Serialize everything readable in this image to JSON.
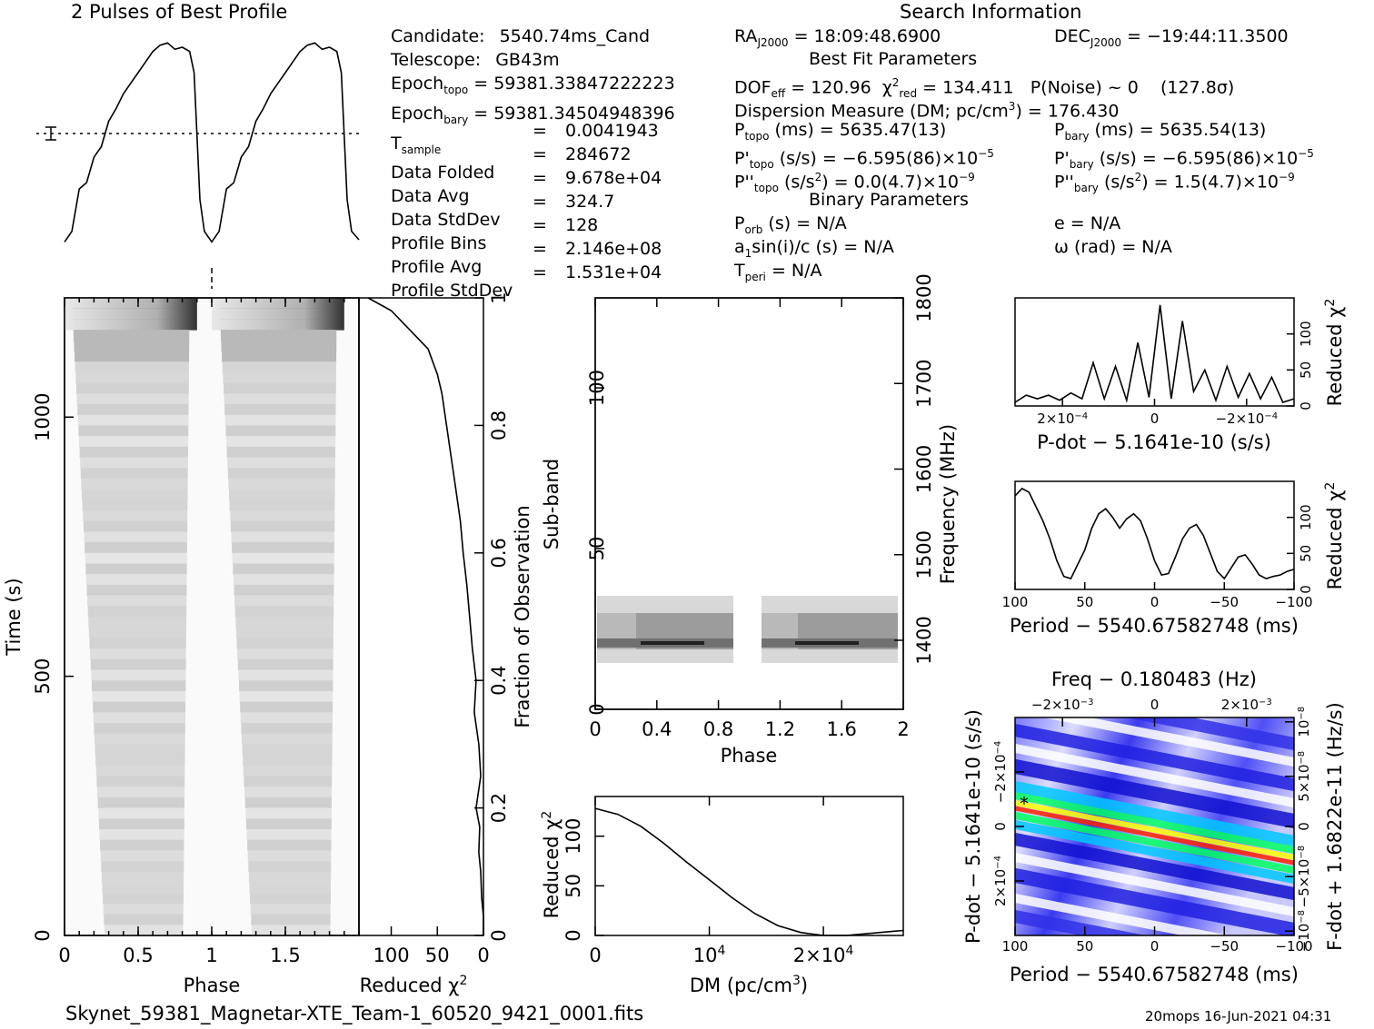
{
  "header": {
    "profile_title": "2 Pulses of Best Profile",
    "search_title": "Search Information",
    "best_fit_title": "Best Fit Parameters",
    "binary_title": "Binary Parameters"
  },
  "info_left": [
    {
      "label": "Candidate:",
      "value": "5540.74ms_Cand"
    },
    {
      "label": "Telescope:",
      "value": "GB43m"
    },
    {
      "label": "Epoch",
      "sub": "topo",
      "value": "= 59381.33847222223"
    },
    {
      "label": "Epoch",
      "sub": "bary",
      "value": "= 59381.34504948396"
    },
    {
      "label": "T",
      "sub": "sample",
      "eq": "=",
      "value": "0.0041943"
    },
    {
      "label": "Data Folded",
      "eq": "=",
      "value": "284672"
    },
    {
      "label": "Data Avg",
      "eq": "=",
      "value": "9.678e+04"
    },
    {
      "label": "Data StdDev",
      "eq": "=",
      "value": "324.7"
    },
    {
      "label": "Profile Bins",
      "eq": "=",
      "value": "128"
    },
    {
      "label": "Profile Avg",
      "eq": "=",
      "value": "2.146e+08"
    },
    {
      "label": "Profile StdDev",
      "eq": "=",
      "value": "1.531e+04"
    }
  ],
  "search": {
    "ra": "= 18:09:48.6900",
    "dec": "= −19:44:11.3500",
    "ra_label": "RA",
    "dec_label": "DEC",
    "j2000": "J2000",
    "dof_label": "DOF",
    "dof_sub": "eff",
    "dof": "= 120.96",
    "chi_sub": "red",
    "chi": "= 134.411",
    "noise": "P(Noise) ~ 0",
    "sigma": "(127.8σ)",
    "dm": "Dispersion Measure (DM; pc/cm",
    "dm_value": ") = 176.430",
    "ptopo": "(ms) =  5635.47(13)",
    "pbary": "(ms) =  5635.54(13)",
    "pdtopo": "(s/s) = −6.595(86)×10",
    "pdbary": "(s/s) = −6.595(86)×10",
    "pdexp": "−5",
    "pddtopo": "(s/s",
    "pddtopo_val": ") = 0.0(4.7)×10",
    "pddbary_val": ") =  1.5(4.7)×10",
    "pddexp": "−9",
    "porb": "(s) = N/A",
    "e": "e = N/A",
    "a1": "sin(i)/c (s) = N/A",
    "omega": "ω (rad) = N/A",
    "tperi": "= N/A"
  },
  "footer": {
    "filename": "Skynet_59381_Magnetar-XTE_Team-1_60520_9421_0001.fits",
    "stamp": "20mops 16-Jun-2021 04:31"
  },
  "chart_data": [
    {
      "type": "line",
      "name": "profile",
      "title": "2 Pulses of Best Profile",
      "x": [
        0,
        0.05,
        0.1,
        0.15,
        0.2,
        0.25,
        0.3,
        0.35,
        0.4,
        0.45,
        0.5,
        0.55,
        0.6,
        0.65,
        0.7,
        0.75,
        0.8,
        0.85,
        0.88,
        0.9,
        0.92,
        0.95,
        1.0,
        1.05,
        1.1,
        1.15,
        1.2,
        1.25,
        1.3,
        1.35,
        1.4,
        1.45,
        1.5,
        1.55,
        1.6,
        1.65,
        1.7,
        1.75,
        1.8,
        1.85,
        1.88,
        1.9,
        1.92,
        1.95,
        2.0
      ],
      "values": [
        0.05,
        0.1,
        0.3,
        0.33,
        0.45,
        0.5,
        0.62,
        0.68,
        0.75,
        0.8,
        0.85,
        0.9,
        0.95,
        0.98,
        0.99,
        0.96,
        0.97,
        0.95,
        0.85,
        0.55,
        0.25,
        0.1,
        0.05,
        0.1,
        0.3,
        0.33,
        0.45,
        0.5,
        0.62,
        0.68,
        0.75,
        0.8,
        0.85,
        0.9,
        0.95,
        0.98,
        0.99,
        0.96,
        0.97,
        0.95,
        0.85,
        0.55,
        0.25,
        0.1,
        0.06
      ]
    },
    {
      "type": "heatmap",
      "name": "time-phase",
      "xlabel": "Phase",
      "ylabel": "Time (s)",
      "xlim": [
        0,
        2
      ],
      "ylim": [
        0,
        1230
      ],
      "xticks": [
        "0",
        "0.5",
        "1",
        "1.5"
      ],
      "yticks": [
        "0",
        "500",
        "1000"
      ]
    },
    {
      "type": "line",
      "name": "time-chi2",
      "xlabel": "Reduced χ",
      "ylabel": "Fraction of Observation",
      "xticks": [
        "100",
        "50",
        "0"
      ],
      "yticks": [
        "0",
        "0.2",
        "0.4",
        "0.6",
        "0.8",
        "1"
      ],
      "x": [
        0,
        0,
        2,
        3,
        5,
        4,
        8,
        3,
        5,
        10,
        8,
        12,
        15,
        18,
        22,
        25,
        30,
        35,
        40,
        45,
        50,
        55,
        60,
        80,
        100,
        125
      ],
      "y": [
        0,
        0.03,
        0.06,
        0.1,
        0.13,
        0.17,
        0.2,
        0.25,
        0.3,
        0.35,
        0.4,
        0.45,
        0.5,
        0.55,
        0.6,
        0.65,
        0.7,
        0.75,
        0.8,
        0.85,
        0.88,
        0.9,
        0.92,
        0.95,
        0.98,
        1.0
      ]
    },
    {
      "type": "heatmap",
      "name": "subband-phase",
      "xlabel": "Phase",
      "ylabel": "Sub-band",
      "y2label": "Frequency (MHz)",
      "xticks": [
        "0",
        "0.4",
        "0.8",
        "1.2",
        "1.6",
        "2"
      ],
      "yticks": [
        "0",
        "50",
        "100"
      ],
      "y2ticks": [
        "1400",
        "1500",
        "1600",
        "1700",
        "1800"
      ]
    },
    {
      "type": "line",
      "name": "dm-chi2",
      "xlabel": "DM (pc/cm",
      "ylabel": "Reduced χ",
      "xticks": [
        "0",
        "10",
        "2×10"
      ],
      "yticks": [
        "0",
        "50",
        "100"
      ],
      "x": [
        0,
        2000,
        4000,
        6000,
        8000,
        10000,
        12000,
        14000,
        16000,
        18000,
        20000,
        22000,
        24000,
        26000,
        27000
      ],
      "y": [
        128,
        122,
        110,
        93,
        74,
        56,
        38,
        22,
        10,
        3,
        0,
        0,
        2,
        4,
        5
      ]
    },
    {
      "type": "line",
      "name": "pdot-chi2",
      "xlabel": "P-dot − 5.1641e-10 (s/s)",
      "ylabel": "Reduced χ",
      "xticks": [
        "2×10",
        "0",
        "−2×10"
      ],
      "yticks": [
        "0",
        "50",
        "100"
      ],
      "x": [
        0,
        0.04,
        0.08,
        0.12,
        0.16,
        0.2,
        0.24,
        0.28,
        0.32,
        0.36,
        0.4,
        0.44,
        0.48,
        0.52,
        0.56,
        0.6,
        0.64,
        0.68,
        0.72,
        0.76,
        0.8,
        0.84,
        0.88,
        0.92,
        0.96,
        1.0
      ],
      "y": [
        5,
        15,
        10,
        15,
        8,
        18,
        10,
        60,
        10,
        55,
        8,
        88,
        12,
        140,
        10,
        118,
        20,
        50,
        8,
        55,
        12,
        45,
        10,
        40,
        5,
        10
      ]
    },
    {
      "type": "line",
      "name": "period-chi2",
      "xlabel": "Period − 5540.67582748 (ms)",
      "ylabel": "Reduced χ",
      "xticks": [
        "100",
        "50",
        "0",
        "−50",
        "−100"
      ],
      "yticks": [
        "0",
        "50",
        "100"
      ],
      "x": [
        100,
        95,
        90,
        85,
        80,
        75,
        70,
        65,
        60,
        55,
        50,
        45,
        40,
        35,
        30,
        25,
        20,
        15,
        10,
        5,
        0,
        -5,
        -10,
        -15,
        -20,
        -25,
        -30,
        -35,
        -40,
        -45,
        -50,
        -55,
        -60,
        -65,
        -70,
        -75,
        -80,
        -85,
        -90,
        -95,
        -100
      ],
      "y": [
        130,
        140,
        135,
        115,
        95,
        70,
        40,
        18,
        15,
        35,
        55,
        85,
        105,
        112,
        100,
        85,
        98,
        105,
        95,
        70,
        40,
        20,
        22,
        45,
        70,
        85,
        90,
        75,
        50,
        25,
        15,
        30,
        45,
        48,
        35,
        20,
        15,
        18,
        20,
        25,
        28
      ]
    },
    {
      "type": "heatmap",
      "name": "period-pdot",
      "title": "Freq − 0.180483 (Hz)",
      "xlabel": "Period − 5540.67582748 (ms)",
      "ylabel": "P-dot − 5.1641e-10 (s/s)",
      "y2label": "F-dot + 1.6822e-11 (Hz/s)",
      "xticks": [
        "100",
        "50",
        "0",
        "−50",
        "−100"
      ],
      "x2ticks": [
        "−2×10",
        "0",
        "2×10"
      ],
      "x2exp": "−3",
      "yticks": [
        "−2×10",
        "0",
        "2×10"
      ],
      "yexp": "−4",
      "y2ticks": [
        "10",
        "5×10",
        "0",
        "−5×10",
        "−10"
      ],
      "y2exp": "−8"
    }
  ]
}
